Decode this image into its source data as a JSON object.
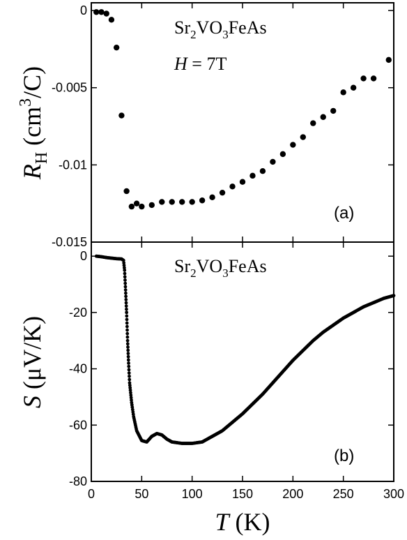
{
  "chart_data": [
    {
      "type": "scatter",
      "panel": "(a)",
      "compound": {
        "base": [
          "Sr",
          "VO",
          "FeAs"
        ],
        "subs": [
          "2",
          "3"
        ]
      },
      "field_label": {
        "symbol": "H",
        "rest": " = 7T"
      },
      "ylabel": {
        "symbol": "R",
        "sub": "H",
        "unit_pre": " (cm",
        "unit_sup": "3",
        "unit_post": "/C)"
      },
      "xlim": [
        0,
        300
      ],
      "ylim": [
        -0.015,
        0.0005
      ],
      "xticks": [
        0,
        50,
        100,
        150,
        200,
        250,
        300
      ],
      "yticks": [
        0,
        -0.005,
        -0.01,
        -0.015
      ],
      "ytick_labels": [
        "0",
        "-0.005",
        "-0.01",
        "-0.015"
      ],
      "color": "#000000",
      "x": [
        5,
        10,
        15,
        20,
        25,
        30,
        35,
        40,
        45,
        50,
        60,
        70,
        80,
        90,
        100,
        110,
        120,
        130,
        140,
        150,
        160,
        170,
        180,
        190,
        200,
        210,
        220,
        230,
        240,
        250,
        260,
        270,
        280,
        295
      ],
      "y": [
        -0.0001,
        -0.0001,
        -0.0002,
        -0.0006,
        -0.0024,
        -0.0068,
        -0.0117,
        -0.0127,
        -0.0125,
        -0.0127,
        -0.0126,
        -0.0124,
        -0.0124,
        -0.0124,
        -0.0124,
        -0.0123,
        -0.0121,
        -0.0118,
        -0.0114,
        -0.0111,
        -0.0107,
        -0.0104,
        -0.0098,
        -0.0093,
        -0.0087,
        -0.0082,
        -0.0073,
        -0.0069,
        -0.0065,
        -0.0053,
        -0.005,
        -0.0044,
        -0.0044,
        -0.0032
      ]
    },
    {
      "type": "scatter",
      "panel": "(b)",
      "compound": {
        "base": [
          "Sr",
          "VO",
          "FeAs"
        ],
        "subs": [
          "2",
          "3"
        ]
      },
      "ylabel": {
        "symbol": "S",
        "unit": " (μV/K)"
      },
      "xlabel": {
        "symbol": "T",
        "unit": " (K)"
      },
      "xlim": [
        0,
        300
      ],
      "ylim": [
        -80,
        5
      ],
      "xticks": [
        0,
        50,
        100,
        150,
        200,
        250,
        300
      ],
      "yticks": [
        0,
        -20,
        -40,
        -60,
        -80
      ],
      "color": "#000000",
      "x": [
        5,
        10,
        15,
        20,
        25,
        30,
        32,
        33,
        34,
        35,
        36,
        37,
        38,
        40,
        42,
        45,
        50,
        55,
        60,
        65,
        70,
        75,
        80,
        90,
        100,
        110,
        120,
        130,
        140,
        150,
        160,
        170,
        180,
        190,
        200,
        210,
        220,
        230,
        240,
        250,
        260,
        270,
        280,
        290,
        300
      ],
      "y": [
        0,
        -0.2,
        -0.5,
        -0.7,
        -0.9,
        -1.0,
        -1.5,
        -5,
        -12,
        -20,
        -30,
        -38,
        -45,
        -52,
        -57,
        -62,
        -65.5,
        -66,
        -64,
        -63,
        -63.5,
        -65,
        -66,
        -66.5,
        -66.5,
        -66,
        -64,
        -62,
        -59,
        -56,
        -52.5,
        -49,
        -45,
        -41,
        -37,
        -33.5,
        -30,
        -27,
        -24.5,
        -22,
        -20,
        -18,
        -16.5,
        -15,
        -14
      ]
    }
  ]
}
